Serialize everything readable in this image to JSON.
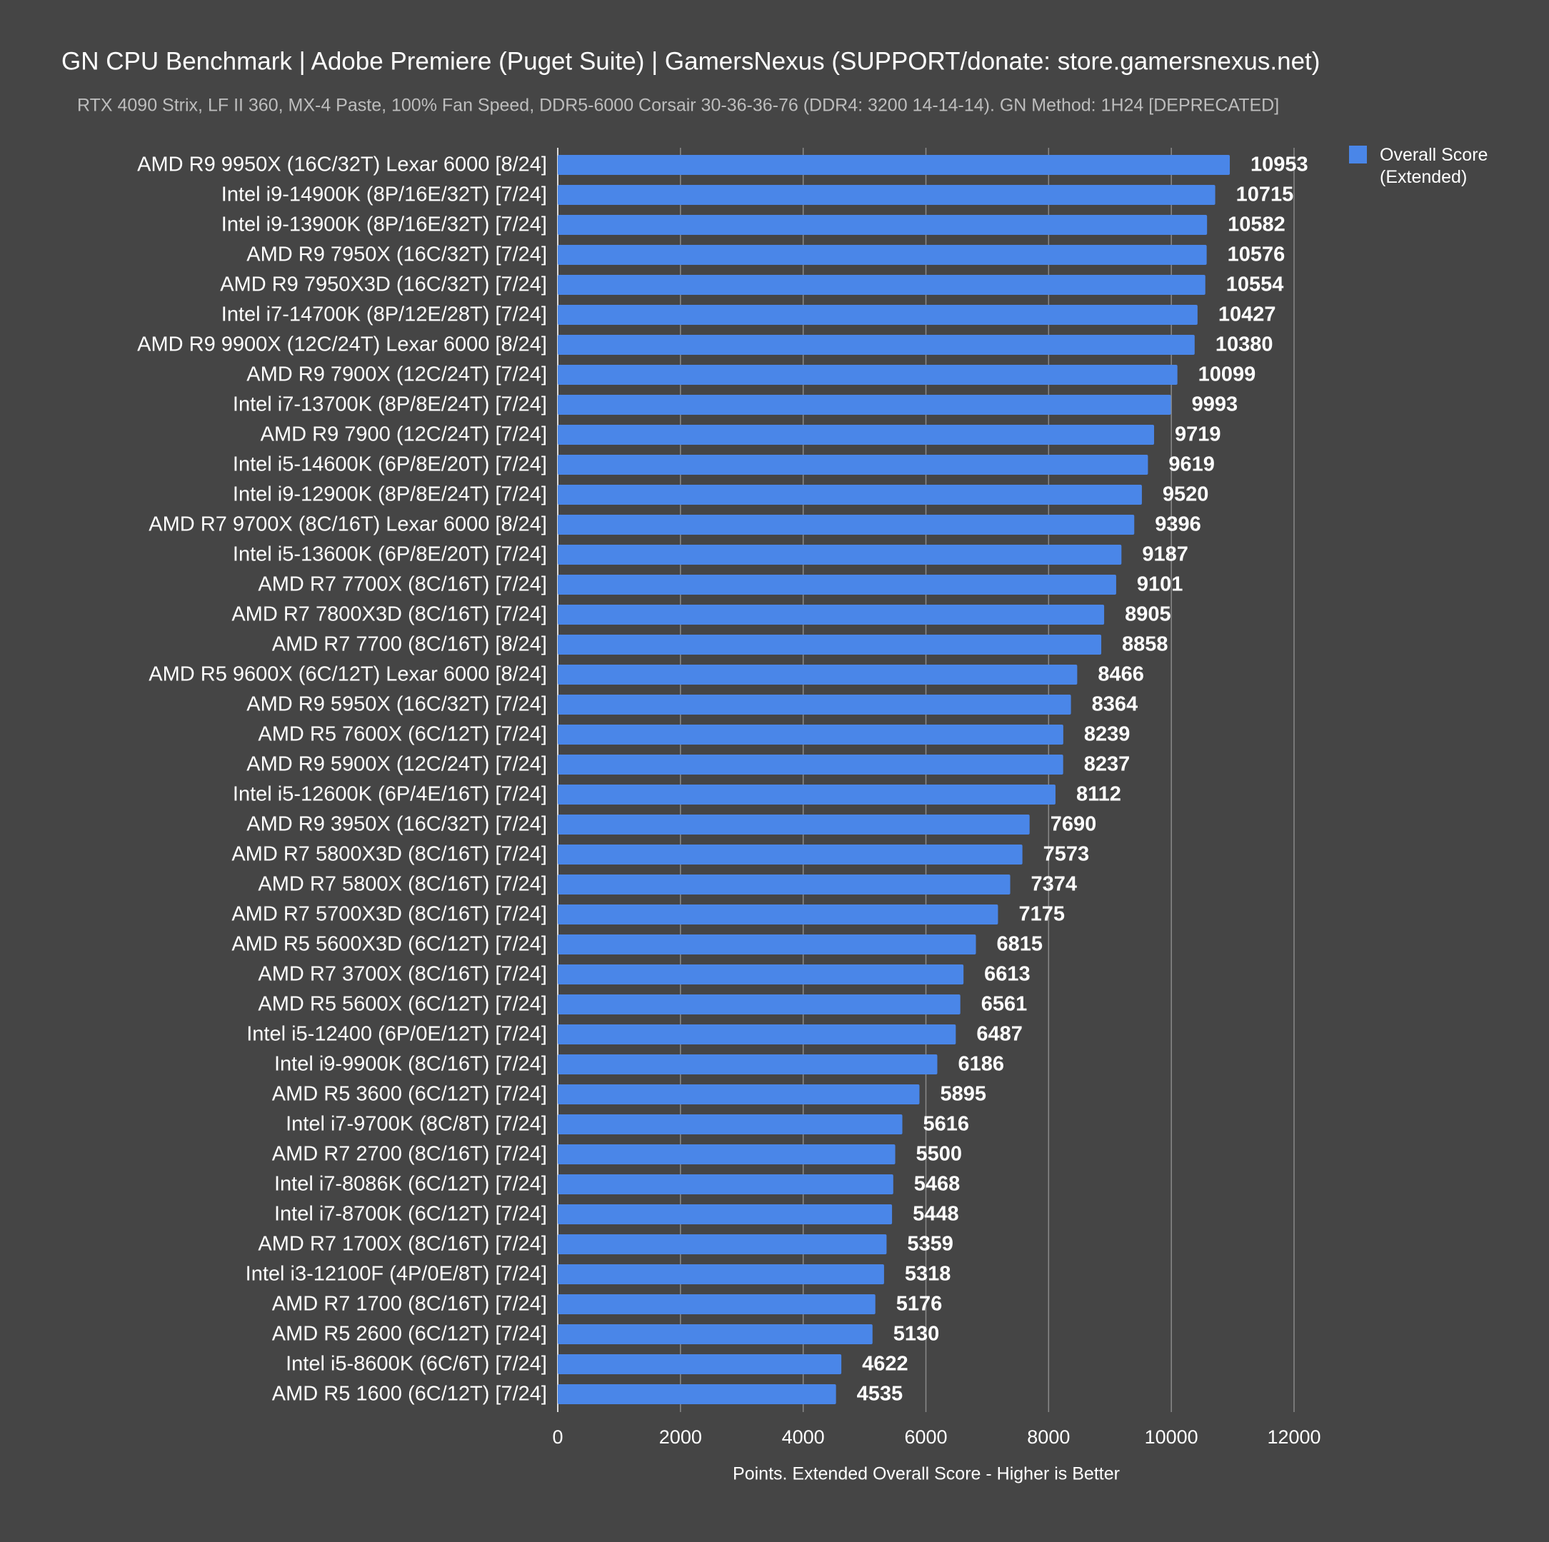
{
  "chart_data": {
    "type": "bar",
    "orientation": "horizontal",
    "title": "GN CPU Benchmark | Adobe Premiere (Puget Suite) | GamersNexus (SUPPORT/donate: store.gamersnexus.net)",
    "subtitle": "RTX 4090 Strix, LF II 360, MX-4 Paste, 100% Fan Speed, DDR5-6000 Corsair 30-36-36-76 (DDR4: 3200 14-14-14). GN Method: 1H24 [DEPRECATED]",
    "x_label": "Points. Extended Overall Score - Higher is Better",
    "categories": [
      "AMD R9 9950X (16C/32T) Lexar 6000 [8/24]",
      "Intel i9-14900K (8P/16E/32T) [7/24]",
      "Intel i9-13900K (8P/16E/32T) [7/24]",
      "AMD R9 7950X (16C/32T) [7/24]",
      "AMD R9 7950X3D (16C/32T) [7/24]",
      "Intel i7-14700K (8P/12E/28T) [7/24]",
      "AMD R9 9900X (12C/24T) Lexar 6000 [8/24]",
      "AMD R9 7900X (12C/24T) [7/24]",
      "Intel i7-13700K (8P/8E/24T) [7/24]",
      "AMD R9 7900 (12C/24T) [7/24]",
      "Intel i5-14600K (6P/8E/20T) [7/24]",
      "Intel i9-12900K (8P/8E/24T) [7/24]",
      "AMD R7 9700X (8C/16T) Lexar 6000 [8/24]",
      "Intel i5-13600K (6P/8E/20T) [7/24]",
      "AMD R7 7700X (8C/16T) [7/24]",
      "AMD R7 7800X3D (8C/16T) [7/24]",
      "AMD R7 7700 (8C/16T) [8/24]",
      "AMD R5 9600X (6C/12T) Lexar 6000 [8/24]",
      "AMD R9 5950X (16C/32T) [7/24]",
      "AMD R5 7600X (6C/12T) [7/24]",
      "AMD R9 5900X (12C/24T) [7/24]",
      "Intel i5-12600K (6P/4E/16T) [7/24]",
      "AMD R9 3950X (16C/32T) [7/24]",
      "AMD R7 5800X3D (8C/16T) [7/24]",
      "AMD R7 5800X (8C/16T) [7/24]",
      "AMD R7 5700X3D (8C/16T) [7/24]",
      "AMD R5 5600X3D (6C/12T) [7/24]",
      "AMD R7 3700X (8C/16T) [7/24]",
      "AMD R5 5600X (6C/12T) [7/24]",
      "Intel i5-12400 (6P/0E/12T) [7/24]",
      "Intel i9-9900K (8C/16T) [7/24]",
      "AMD R5 3600 (6C/12T) [7/24]",
      "Intel i7-9700K (8C/8T) [7/24]",
      "AMD R7 2700 (8C/16T) [7/24]",
      "Intel i7-8086K (6C/12T) [7/24]",
      "Intel i7-8700K (6C/12T) [7/24]",
      "AMD R7 1700X (8C/16T) [7/24]",
      "Intel i3-12100F (4P/0E/8T) [7/24]",
      "AMD R7 1700 (8C/16T) [7/24]",
      "AMD R5 2600 (6C/12T) [7/24]",
      "Intel i5-8600K (6C/6T) [7/24]",
      "AMD R5 1600 (6C/12T) [7/24]"
    ],
    "series": [
      {
        "name": "Overall Score (Extended)",
        "color": "#4a86e8",
        "values": [
          10953,
          10715,
          10582,
          10576,
          10554,
          10427,
          10380,
          10099,
          9993,
          9719,
          9619,
          9520,
          9396,
          9187,
          9101,
          8905,
          8858,
          8466,
          8364,
          8239,
          8237,
          8112,
          7690,
          7573,
          7374,
          7175,
          6815,
          6613,
          6561,
          6487,
          6186,
          5895,
          5616,
          5500,
          5468,
          5448,
          5359,
          5318,
          5176,
          5130,
          4622,
          4535
        ]
      }
    ],
    "xlim": [
      0,
      12000
    ],
    "xticks": [
      0,
      2000,
      4000,
      6000,
      8000,
      10000,
      12000
    ],
    "grid": true,
    "legend": "top-right"
  }
}
